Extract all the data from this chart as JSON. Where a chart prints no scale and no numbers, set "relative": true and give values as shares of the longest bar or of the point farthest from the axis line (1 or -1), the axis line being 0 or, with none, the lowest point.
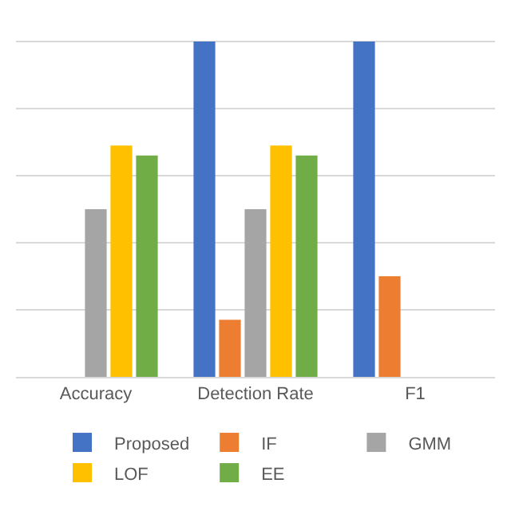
{
  "chart_data": {
    "type": "bar",
    "relative": true,
    "grid": "y",
    "legend": "bottom",
    "categories": [
      "Accuracy",
      "Detection Rate",
      "F1"
    ],
    "series": [
      {
        "name": "Proposed",
        "color": "#4472c4",
        "values": [
          null,
          1,
          1
        ]
      },
      {
        "name": "IF",
        "color": "#ed7d31",
        "values": [
          null,
          0.17,
          0.3
        ]
      },
      {
        "name": "GMM",
        "color": "#a5a5a5",
        "values": [
          0.5,
          0.5,
          null
        ]
      },
      {
        "name": "LOF",
        "color": "#ffc000",
        "values": [
          0.69,
          0.69,
          null
        ]
      },
      {
        "name": "EE",
        "color": "#70ad47",
        "values": [
          0.66,
          0.66,
          null
        ]
      }
    ]
  }
}
